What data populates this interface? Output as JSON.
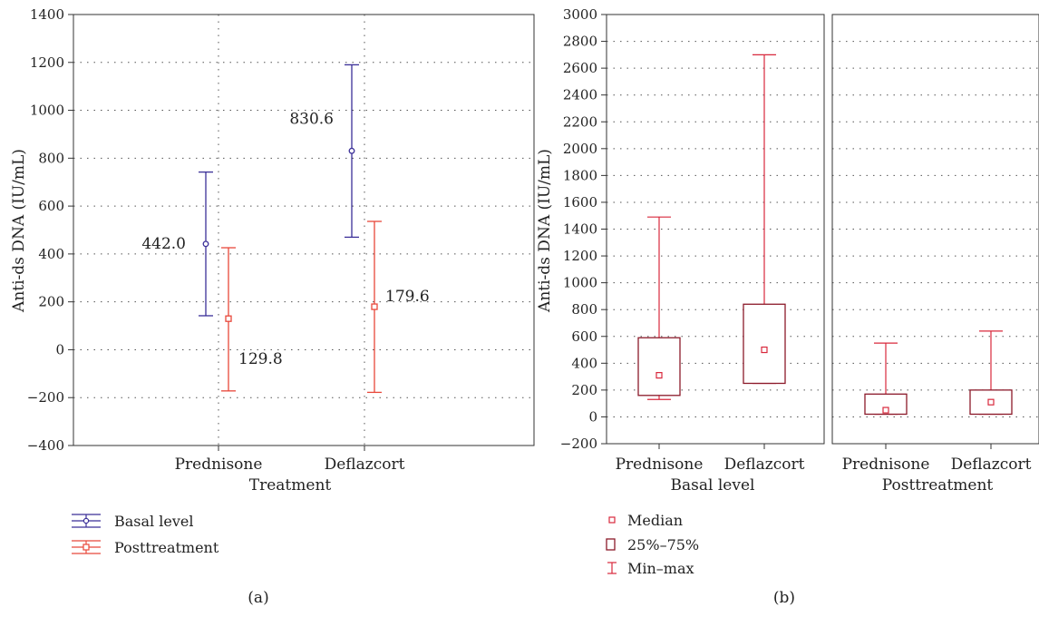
{
  "colors": {
    "basal": "#3b2f98",
    "post": "#e8473a",
    "box": "#8b1a2a",
    "boxMark": "#d8283c",
    "grid": "#555555",
    "frame": "#333333"
  },
  "chart_data": [
    {
      "type": "line",
      "panel_label": "(a)",
      "ylabel": "Anti-ds DNA (IU/mL)",
      "xlabel": "Treatment",
      "categories": [
        "Prednisone",
        "Deflazcort"
      ],
      "ylim": [
        -400,
        1400
      ],
      "yticks": [
        -400,
        -200,
        0,
        200,
        400,
        600,
        800,
        1000,
        1200,
        1400
      ],
      "ytick_labels": [
        "−400",
        "−200",
        "0",
        "200",
        "400",
        "600",
        "800",
        "1000",
        "1200",
        "1400"
      ],
      "grid": true,
      "series": [
        {
          "name": "Basal level",
          "color": "#3b2f98",
          "points": [
            {
              "category": "Prednisone",
              "mean": 442.0,
              "low": 142,
              "high": 742,
              "label": "442.0"
            },
            {
              "category": "Deflazcort",
              "mean": 830.6,
              "low": 470,
              "high": 1190,
              "label": "830.6"
            }
          ]
        },
        {
          "name": "Posttreatment",
          "color": "#e8473a",
          "points": [
            {
              "category": "Prednisone",
              "mean": 129.8,
              "low": -172,
              "high": 426,
              "label": "129.8"
            },
            {
              "category": "Deflazcort",
              "mean": 179.6,
              "low": -178,
              "high": 536,
              "label": "179.6"
            }
          ]
        }
      ]
    },
    {
      "type": "box",
      "panel_label": "(b)",
      "ylabel": "Anti-ds DNA (IU/mL)",
      "ylim": [
        -200,
        3000
      ],
      "yticks": [
        -200,
        0,
        200,
        400,
        600,
        800,
        1000,
        1200,
        1400,
        1600,
        1800,
        2000,
        2200,
        2400,
        2600,
        2800,
        3000
      ],
      "ytick_labels": [
        "−200",
        "0",
        "200",
        "400",
        "600",
        "800",
        "1000",
        "1200",
        "1400",
        "1600",
        "1800",
        "2000",
        "2200",
        "2400",
        "2600",
        "2800",
        "3000"
      ],
      "grid": true,
      "groups": [
        {
          "name": "Basal level",
          "boxes": [
            {
              "category": "Prednisone",
              "min": 130,
              "q1": 160,
              "median": 310,
              "q3": 590,
              "max": 1490
            },
            {
              "category": "Deflazcort",
              "min": 250,
              "q1": 250,
              "median": 500,
              "q3": 840,
              "max": 2700
            }
          ]
        },
        {
          "name": "Posttreatment",
          "boxes": [
            {
              "category": "Prednisone",
              "min": 20,
              "q1": 20,
              "median": 50,
              "q3": 170,
              "max": 550
            },
            {
              "category": "Deflazcort",
              "min": 20,
              "q1": 20,
              "median": 110,
              "q3": 200,
              "max": 640
            }
          ]
        }
      ],
      "legend": [
        "Median",
        "25%–75%",
        "Min–max"
      ]
    }
  ]
}
